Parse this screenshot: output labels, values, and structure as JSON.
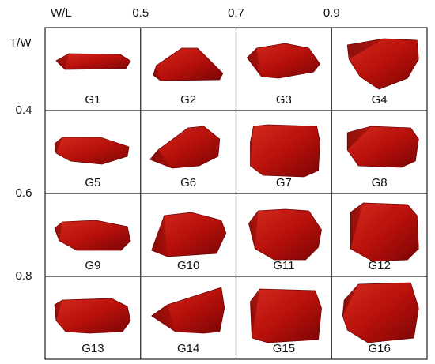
{
  "axes": {
    "x_label": "W/L",
    "x_ticks": [
      0.5,
      0.7,
      0.9
    ],
    "y_label": "T/W",
    "y_ticks": [
      0.4,
      0.6,
      0.8
    ]
  },
  "cells": [
    "G1",
    "G2",
    "G3",
    "G4",
    "G5",
    "G6",
    "G7",
    "G8",
    "G9",
    "G10",
    "G11",
    "G12",
    "G13",
    "G14",
    "G15",
    "G16"
  ]
}
